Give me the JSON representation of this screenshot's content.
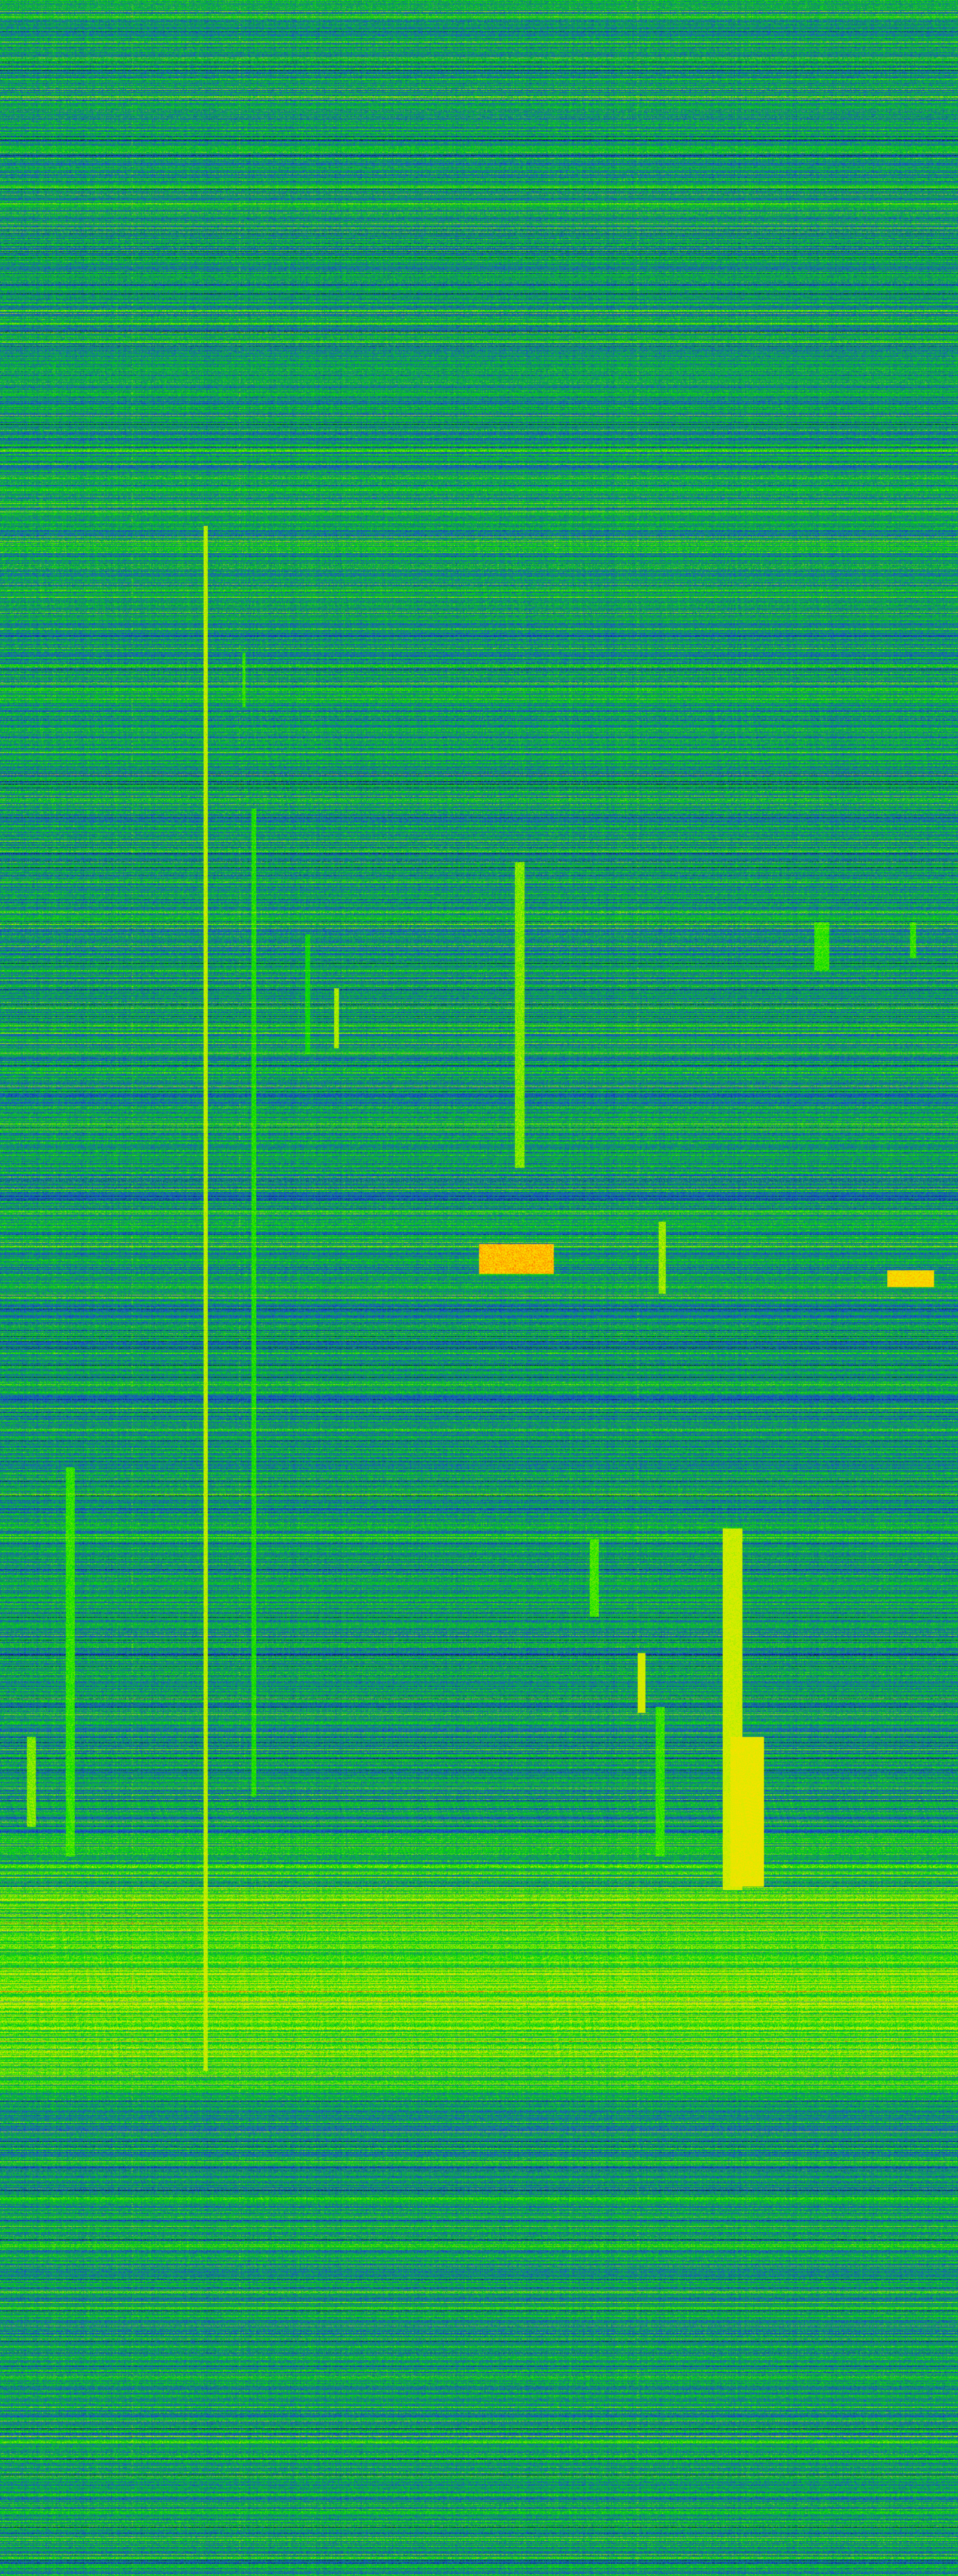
{
  "colormap": [
    "#000000",
    "#0a1fb0",
    "#1a5ad0",
    "#10a050",
    "#00e000",
    "#c8f000",
    "#ffe000",
    "#ff3000"
  ]
}
